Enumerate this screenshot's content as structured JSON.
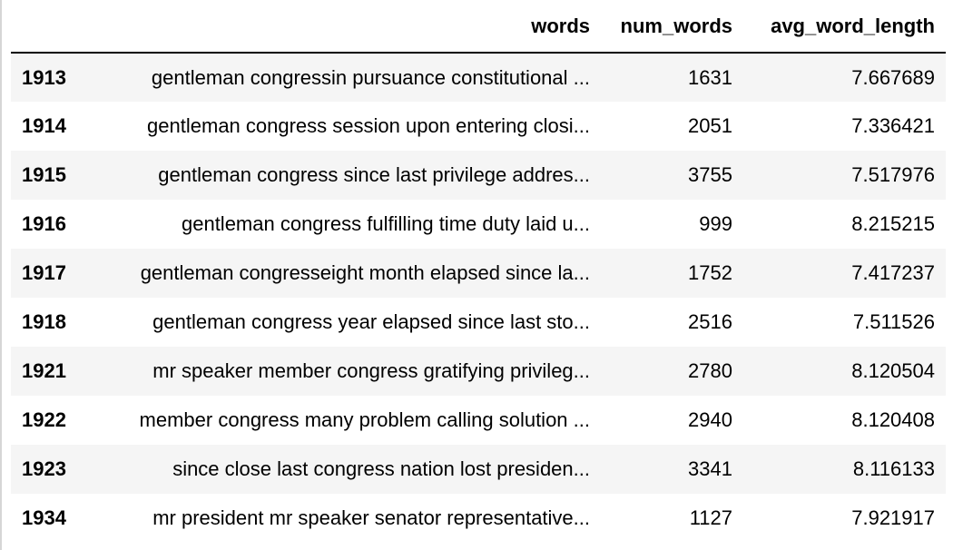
{
  "table": {
    "columns": [
      "",
      "words",
      "num_words",
      "avg_word_length"
    ],
    "rows": [
      {
        "index": "1913",
        "words": "gentleman congressin pursuance constitutional ...",
        "num_words": "1631",
        "avg_word_length": "7.667689"
      },
      {
        "index": "1914",
        "words": "gentleman congress session upon entering closi...",
        "num_words": "2051",
        "avg_word_length": "7.336421"
      },
      {
        "index": "1915",
        "words": "gentleman congress since last privilege addres...",
        "num_words": "3755",
        "avg_word_length": "7.517976"
      },
      {
        "index": "1916",
        "words": "gentleman congress fulfilling time duty laid u...",
        "num_words": "999",
        "avg_word_length": "8.215215"
      },
      {
        "index": "1917",
        "words": "gentleman congresseight month elapsed since la...",
        "num_words": "1752",
        "avg_word_length": "7.417237"
      },
      {
        "index": "1918",
        "words": "gentleman congress year elapsed since last sto...",
        "num_words": "2516",
        "avg_word_length": "7.511526"
      },
      {
        "index": "1921",
        "words": "mr speaker member congress gratifying privileg...",
        "num_words": "2780",
        "avg_word_length": "8.120504"
      },
      {
        "index": "1922",
        "words": "member congress many problem calling solution ...",
        "num_words": "2940",
        "avg_word_length": "8.120408"
      },
      {
        "index": "1923",
        "words": "since close last congress nation lost presiden...",
        "num_words": "3341",
        "avg_word_length": "8.116133"
      },
      {
        "index": "1934",
        "words": "mr president mr speaker senator representative...",
        "num_words": "1127",
        "avg_word_length": "7.921917"
      }
    ]
  }
}
